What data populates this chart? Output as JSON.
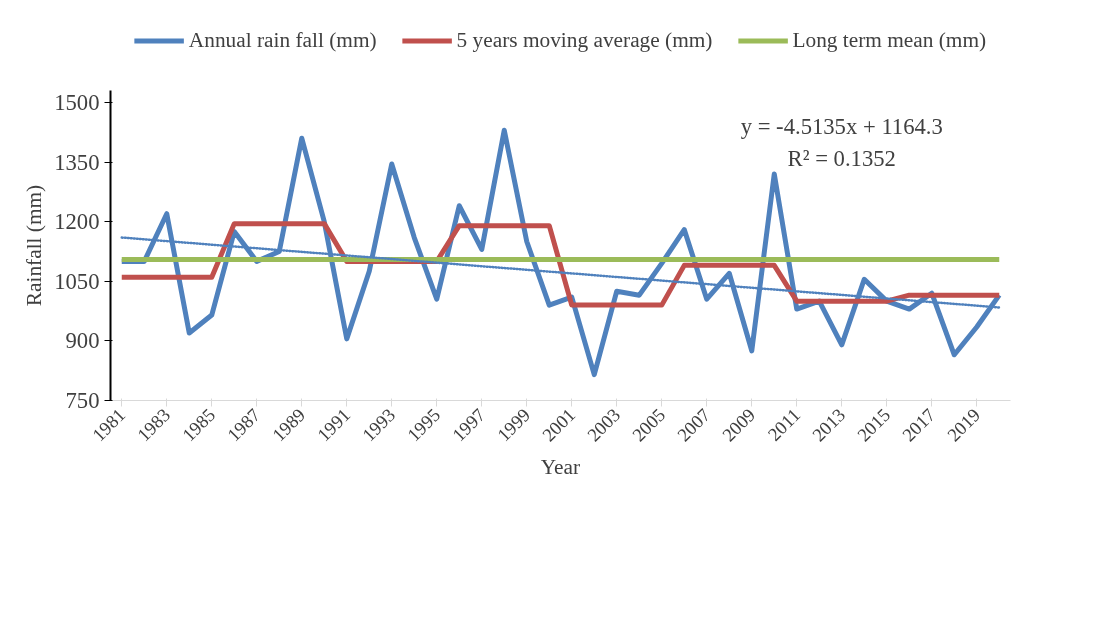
{
  "chart_data": {
    "type": "line",
    "xlabel": "Year",
    "ylabel": "Rainfall (mm)",
    "x": [
      1981,
      1982,
      1983,
      1984,
      1985,
      1986,
      1987,
      1988,
      1989,
      1990,
      1991,
      1992,
      1993,
      1994,
      1995,
      1996,
      1997,
      1998,
      1999,
      2000,
      2001,
      2002,
      2003,
      2004,
      2005,
      2006,
      2007,
      2008,
      2009,
      2010,
      2011,
      2012,
      2013,
      2014,
      2015,
      2016,
      2017,
      2018,
      2019,
      2020
    ],
    "series": [
      {
        "name": "Annual rain fall (mm)",
        "color": "#4f81bd",
        "values": [
          1100,
          1100,
          1220,
          920,
          965,
          1175,
          1100,
          1125,
          1410,
          1200,
          905,
          1075,
          1345,
          1160,
          1005,
          1240,
          1130,
          1430,
          1150,
          990,
          1010,
          815,
          1025,
          1015,
          1095,
          1180,
          1005,
          1070,
          875,
          1320,
          980,
          1000,
          890,
          1055,
          1000,
          980,
          1020,
          865,
          935,
          1015
        ]
      },
      {
        "name": "5 years moving average (mm)",
        "color": "#c0504d",
        "values": [
          1060,
          1060,
          1060,
          1060,
          1060,
          1195,
          1195,
          1195,
          1195,
          1195,
          1100,
          1100,
          1100,
          1100,
          1100,
          1190,
          1190,
          1190,
          1190,
          1190,
          990,
          990,
          990,
          990,
          990,
          1090,
          1090,
          1090,
          1090,
          1090,
          1000,
          1000,
          1000,
          1000,
          1000,
          1015,
          1015,
          1015,
          1015,
          1015
        ]
      },
      {
        "name": "Long term mean (mm)",
        "color": "#9bbb59",
        "values": [
          1105,
          1105,
          1105,
          1105,
          1105,
          1105,
          1105,
          1105,
          1105,
          1105,
          1105,
          1105,
          1105,
          1105,
          1105,
          1105,
          1105,
          1105,
          1105,
          1105,
          1105,
          1105,
          1105,
          1105,
          1105,
          1105,
          1105,
          1105,
          1105,
          1105,
          1105,
          1105,
          1105,
          1105,
          1105,
          1105,
          1105,
          1105,
          1105,
          1105
        ]
      },
      {
        "type": "line",
        "line_style": "dotted",
        "color": "#4f81bd",
        "x": [
          1981,
          2020
        ],
        "values": [
          1160,
          984
        ]
      }
    ],
    "xlim": [
      1980.5,
      2020.5
    ],
    "xticks": [
      1981,
      1983,
      1985,
      1987,
      1989,
      1991,
      1993,
      1995,
      1997,
      1999,
      2001,
      2003,
      2005,
      2007,
      2009,
      2011,
      2013,
      2015,
      2017,
      2019
    ],
    "ylim": [
      750,
      1530
    ],
    "yticks": [
      750,
      900,
      1050,
      1200,
      1350,
      1500
    ],
    "grid": false,
    "legend": "top",
    "annotations": [
      "y = -4.5135x + 1164.3",
      "R² = 0.1352"
    ]
  }
}
